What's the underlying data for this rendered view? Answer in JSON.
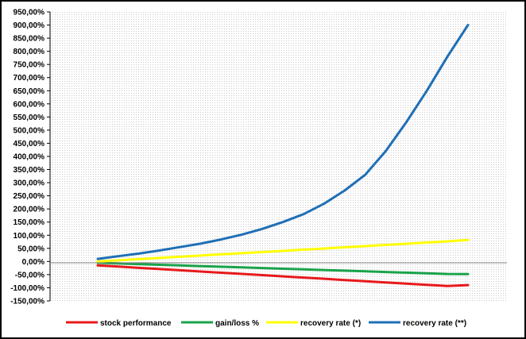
{
  "chart_data": {
    "type": "line",
    "title": "",
    "xlabel": "",
    "ylabel": "",
    "ylim": [
      -150,
      950
    ],
    "ytick_step": 50,
    "y_tick_labels": [
      "950,00%",
      "900,00%",
      "850,00%",
      "800,00%",
      "750,00%",
      "700,00%",
      "650,00%",
      "600,00%",
      "550,00%",
      "500,00%",
      "450,00%",
      "400,00%",
      "350,00%",
      "300,00%",
      "250,00%",
      "200,00%",
      "150,00%",
      "100,00%",
      "50,00%",
      "0,00%",
      "-50,00%",
      "-100,00%",
      "-150,00%"
    ],
    "x_tick_labels_shown": false,
    "plot_background": "dotted-gray",
    "legend_position": "bottom",
    "x": [
      0,
      5,
      10,
      15,
      20,
      25,
      30,
      35,
      40,
      45,
      50,
      55,
      60,
      65,
      70,
      75,
      80,
      85,
      90
    ],
    "series": [
      {
        "name": "stock performance",
        "color": "#e8191b",
        "values": [
          -15,
          -19.6,
          -24.2,
          -28.9,
          -33.5,
          -38.1,
          -42.7,
          -47.3,
          -51.9,
          -56.6,
          -61.2,
          -65.8,
          -70.4,
          -75,
          -79.6,
          -84.2,
          -88.9,
          -93.5,
          -90
        ]
      },
      {
        "name": "gain/loss %",
        "color": "#1aa34a",
        "values": [
          -5,
          -7.5,
          -10,
          -12.5,
          -15,
          -17.5,
          -20,
          -22.5,
          -25,
          -27.5,
          -30,
          -32.5,
          -35,
          -37.5,
          -40,
          -42.5,
          -45,
          -47.5,
          -48
        ]
      },
      {
        "name": "recovery rate (*)",
        "color": "#ffff00",
        "values": [
          0,
          4.5,
          9,
          13.5,
          18,
          22.5,
          27,
          31.5,
          36,
          40.5,
          45,
          49.5,
          54,
          58.5,
          63,
          67.5,
          72,
          76.5,
          82
        ]
      },
      {
        "name": "recovery rate (**)",
        "color": "#1f6fb5",
        "values": [
          10,
          20,
          30,
          42,
          55,
          68,
          84,
          102,
          124,
          150,
          180,
          220,
          270,
          330,
          420,
          530,
          650,
          780,
          900
        ]
      }
    ]
  }
}
